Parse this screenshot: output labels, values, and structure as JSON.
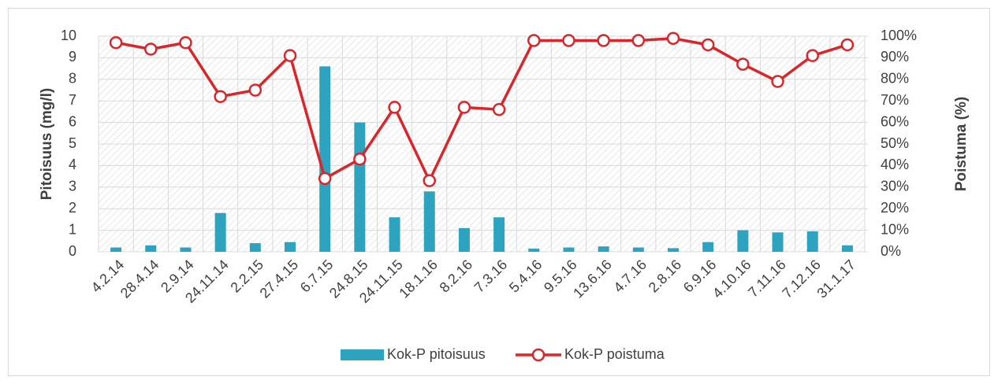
{
  "chart_data": {
    "type": "bar_line",
    "y_label": "Pitoisuus (mg/l)",
    "y2_label": "Poistuma (%)",
    "categories": [
      "4.2.14",
      "28.4.14",
      "2.9.14",
      "24.11.14",
      "2.2.15",
      "27.4.15",
      "6.7.15",
      "24.8.15",
      "24.11.15",
      "18.1.16",
      "8.2.16",
      "7.3.16",
      "5.4.16",
      "9.5.16",
      "13.6.16",
      "4.7.16",
      "2.8.16",
      "6.9.16",
      "4.10.16",
      "7.11.16",
      "7.12.16",
      "31.1.17"
    ],
    "series": [
      {
        "name": "Kok-P pitoisuus",
        "type": "bar",
        "color": "#2ea3bf",
        "axis": "y",
        "values": [
          0.2,
          0.3,
          0.2,
          1.8,
          0.4,
          0.45,
          8.6,
          6.0,
          1.6,
          2.8,
          1.1,
          1.6,
          0.15,
          0.2,
          0.25,
          0.2,
          0.17,
          0.45,
          1.0,
          0.9,
          0.95,
          0.3
        ]
      },
      {
        "name": "Kok-P poistuma",
        "type": "line",
        "color": "#d9262b",
        "axis": "y2",
        "values": [
          97,
          94,
          97,
          72,
          75,
          91,
          34,
          43,
          67,
          33,
          67,
          66,
          98,
          98,
          98,
          98,
          99,
          96,
          87,
          79,
          91,
          96
        ]
      }
    ],
    "ylim": [
      0,
      10
    ],
    "yticks": [
      0,
      1,
      2,
      3,
      4,
      5,
      6,
      7,
      8,
      9,
      10
    ],
    "y2lim": [
      0,
      100
    ],
    "y2ticks": [
      {
        "value": 0,
        "label": "0%"
      },
      {
        "value": 10,
        "label": "10%"
      },
      {
        "value": 20,
        "label": "20%"
      },
      {
        "value": 30,
        "label": "30%"
      },
      {
        "value": 40,
        "label": "40%"
      },
      {
        "value": 50,
        "label": "50%"
      },
      {
        "value": 60,
        "label": "60%"
      },
      {
        "value": 70,
        "label": "70%"
      },
      {
        "value": 80,
        "label": "80%"
      },
      {
        "value": 90,
        "label": "90%"
      },
      {
        "value": 100,
        "label": "100%"
      }
    ],
    "grid": true,
    "legend": "bottom"
  }
}
